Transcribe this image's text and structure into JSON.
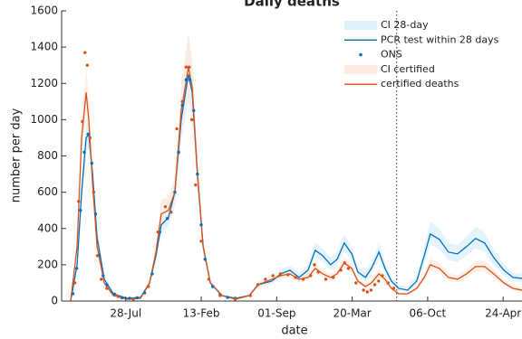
{
  "chart_data": {
    "type": "line",
    "title": "Daily deaths",
    "xlabel": "date",
    "ylabel": "number per day",
    "xlim": [
      -20,
      1200
    ],
    "ylim": [
      0,
      1600
    ],
    "yticks": [
      0,
      200,
      400,
      600,
      800,
      1000,
      1200,
      1400,
      1600
    ],
    "xticks": [
      {
        "value": 150,
        "label": "28-Jul"
      },
      {
        "value": 350,
        "label": "13-Feb"
      },
      {
        "value": 550,
        "label": "01-Sep"
      },
      {
        "value": 750,
        "label": "20-Mar"
      },
      {
        "value": 950,
        "label": "06-Oct"
      },
      {
        "value": 1150,
        "label": "24-Apr"
      }
    ],
    "vline": 868,
    "x": [
      4,
      21,
      33,
      45,
      52,
      62,
      74,
      93,
      117,
      153,
      189,
      213,
      230,
      244,
      263,
      280,
      297,
      316,
      326,
      340,
      355,
      374,
      405,
      441,
      477,
      501,
      537,
      561,
      585,
      609,
      633,
      652,
      672,
      693,
      710,
      729,
      749,
      765,
      785,
      801,
      821,
      837,
      854,
      873,
      897,
      921,
      941,
      957,
      981,
      1005,
      1029,
      1053,
      1077,
      1101,
      1125,
      1152,
      1176,
      1200
    ],
    "series": [
      {
        "name": "CI 28-day",
        "kind": "band",
        "color": "#dff1fb",
        "upper": [
          0,
          240,
          680,
          1000,
          1010,
          780,
          400,
          140,
          50,
          20,
          25,
          120,
          290,
          480,
          520,
          700,
          1150,
          1480,
          1300,
          800,
          350,
          120,
          40,
          20,
          40,
          110,
          130,
          175,
          195,
          155,
          200,
          320,
          290,
          240,
          270,
          370,
          300,
          190,
          160,
          215,
          320,
          215,
          135,
          90,
          80,
          140,
          300,
          440,
          400,
          320,
          310,
          355,
          410,
          380,
          285,
          205,
          155,
          150
        ],
        "lower": [
          0,
          170,
          520,
          820,
          840,
          630,
          310,
          100,
          32,
          10,
          15,
          85,
          215,
          370,
          410,
          520,
          880,
          1100,
          1020,
          610,
          260,
          85,
          24,
          10,
          24,
          75,
          95,
          130,
          148,
          110,
          145,
          245,
          215,
          170,
          195,
          275,
          225,
          135,
          108,
          150,
          230,
          150,
          90,
          55,
          48,
          90,
          210,
          310,
          285,
          225,
          215,
          250,
          290,
          270,
          200,
          140,
          108,
          105
        ]
      },
      {
        "name": "PCR test within 28 days",
        "kind": "line",
        "color": "#0072bd",
        "values": [
          0,
          200,
          600,
          900,
          920,
          700,
          350,
          120,
          40,
          15,
          20,
          100,
          250,
          420,
          460,
          600,
          1000,
          1250,
          1150,
          700,
          300,
          100,
          30,
          15,
          30,
          90,
          110,
          150,
          170,
          130,
          170,
          280,
          250,
          200,
          230,
          320,
          260,
          160,
          130,
          180,
          270,
          180,
          110,
          70,
          60,
          110,
          250,
          370,
          340,
          270,
          260,
          300,
          345,
          320,
          240,
          170,
          130,
          125
        ]
      },
      {
        "name": "ONS",
        "kind": "dots",
        "color": "#0072bd",
        "x": [
          10,
          20,
          30,
          40,
          50,
          60,
          70,
          80,
          90,
          100,
          120,
          140,
          160,
          180,
          200,
          220,
          240,
          260,
          280,
          290,
          300,
          310,
          320,
          330,
          340,
          350,
          360,
          380,
          400,
          420,
          440
        ],
        "values": [
          40,
          180,
          500,
          820,
          920,
          760,
          480,
          250,
          140,
          90,
          38,
          18,
          15,
          18,
          45,
          150,
          380,
          455,
          600,
          820,
          1080,
          1220,
          1220,
          1050,
          700,
          420,
          230,
          80,
          35,
          20,
          15
        ]
      },
      {
        "name": "CI certified",
        "kind": "band",
        "color": "#fcebe0",
        "upper": [
          0,
          340,
          1000,
          1280,
          1120,
          730,
          340,
          115,
          36,
          14,
          20,
          120,
          310,
          560,
          570,
          690,
          1200,
          1480,
          1330,
          790,
          340,
          115,
          36,
          14,
          36,
          105,
          140,
          160,
          172,
          140,
          150,
          205,
          172,
          150,
          172,
          240,
          205,
          128,
          95,
          118,
          175,
          140,
          82,
          48,
          48,
          82,
          152,
          232,
          210,
          152,
          140,
          175,
          222,
          222,
          175,
          118,
          83,
          72
        ],
        "lower": [
          0,
          260,
          800,
          1030,
          890,
          575,
          265,
          88,
          25,
          7,
          11,
          85,
          235,
          410,
          440,
          520,
          920,
          1140,
          1040,
          620,
          265,
          88,
          25,
          7,
          25,
          77,
          103,
          122,
          130,
          103,
          112,
          157,
          130,
          112,
          130,
          182,
          157,
          94,
          68,
          85,
          127,
          103,
          60,
          33,
          33,
          60,
          110,
          170,
          153,
          110,
          102,
          127,
          162,
          162,
          127,
          85,
          60,
          51
        ]
      },
      {
        "name": "certified deaths",
        "kind": "line",
        "color": "#d95319",
        "values": [
          0,
          300,
          900,
          1150,
          1000,
          650,
          300,
          100,
          30,
          10,
          15,
          100,
          270,
          480,
          500,
          600,
          1050,
          1290,
          1180,
          700,
          300,
          100,
          30,
          10,
          30,
          90,
          120,
          140,
          150,
          120,
          130,
          180,
          150,
          130,
          150,
          210,
          180,
          110,
          80,
          100,
          150,
          120,
          70,
          40,
          40,
          70,
          130,
          200,
          180,
          130,
          120,
          150,
          190,
          190,
          150,
          100,
          70,
          60
        ]
      },
      {
        "kind": "dots",
        "color": "#d95319",
        "x": [
          15,
          25,
          35,
          42,
          48,
          55,
          65,
          75,
          85,
          100,
          130,
          170,
          210,
          235,
          255,
          270,
          285,
          300,
          310,
          318,
          325,
          335,
          350,
          370,
          400,
          440,
          480,
          500,
          520,
          540,
          560,
          580,
          600,
          620,
          640,
          650,
          660,
          680,
          700,
          720,
          730,
          740,
          760,
          780,
          790,
          800,
          810,
          820,
          830,
          845,
          860
        ],
        "values": [
          100,
          550,
          990,
          1370,
          1300,
          900,
          600,
          250,
          120,
          70,
          25,
          10,
          80,
          380,
          520,
          490,
          950,
          1100,
          1290,
          1290,
          1000,
          640,
          330,
          120,
          30,
          10,
          30,
          90,
          120,
          140,
          150,
          145,
          130,
          120,
          140,
          200,
          160,
          120,
          130,
          170,
          210,
          180,
          100,
          60,
          50,
          60,
          90,
          110,
          140,
          100,
          70
        ]
      }
    ]
  }
}
